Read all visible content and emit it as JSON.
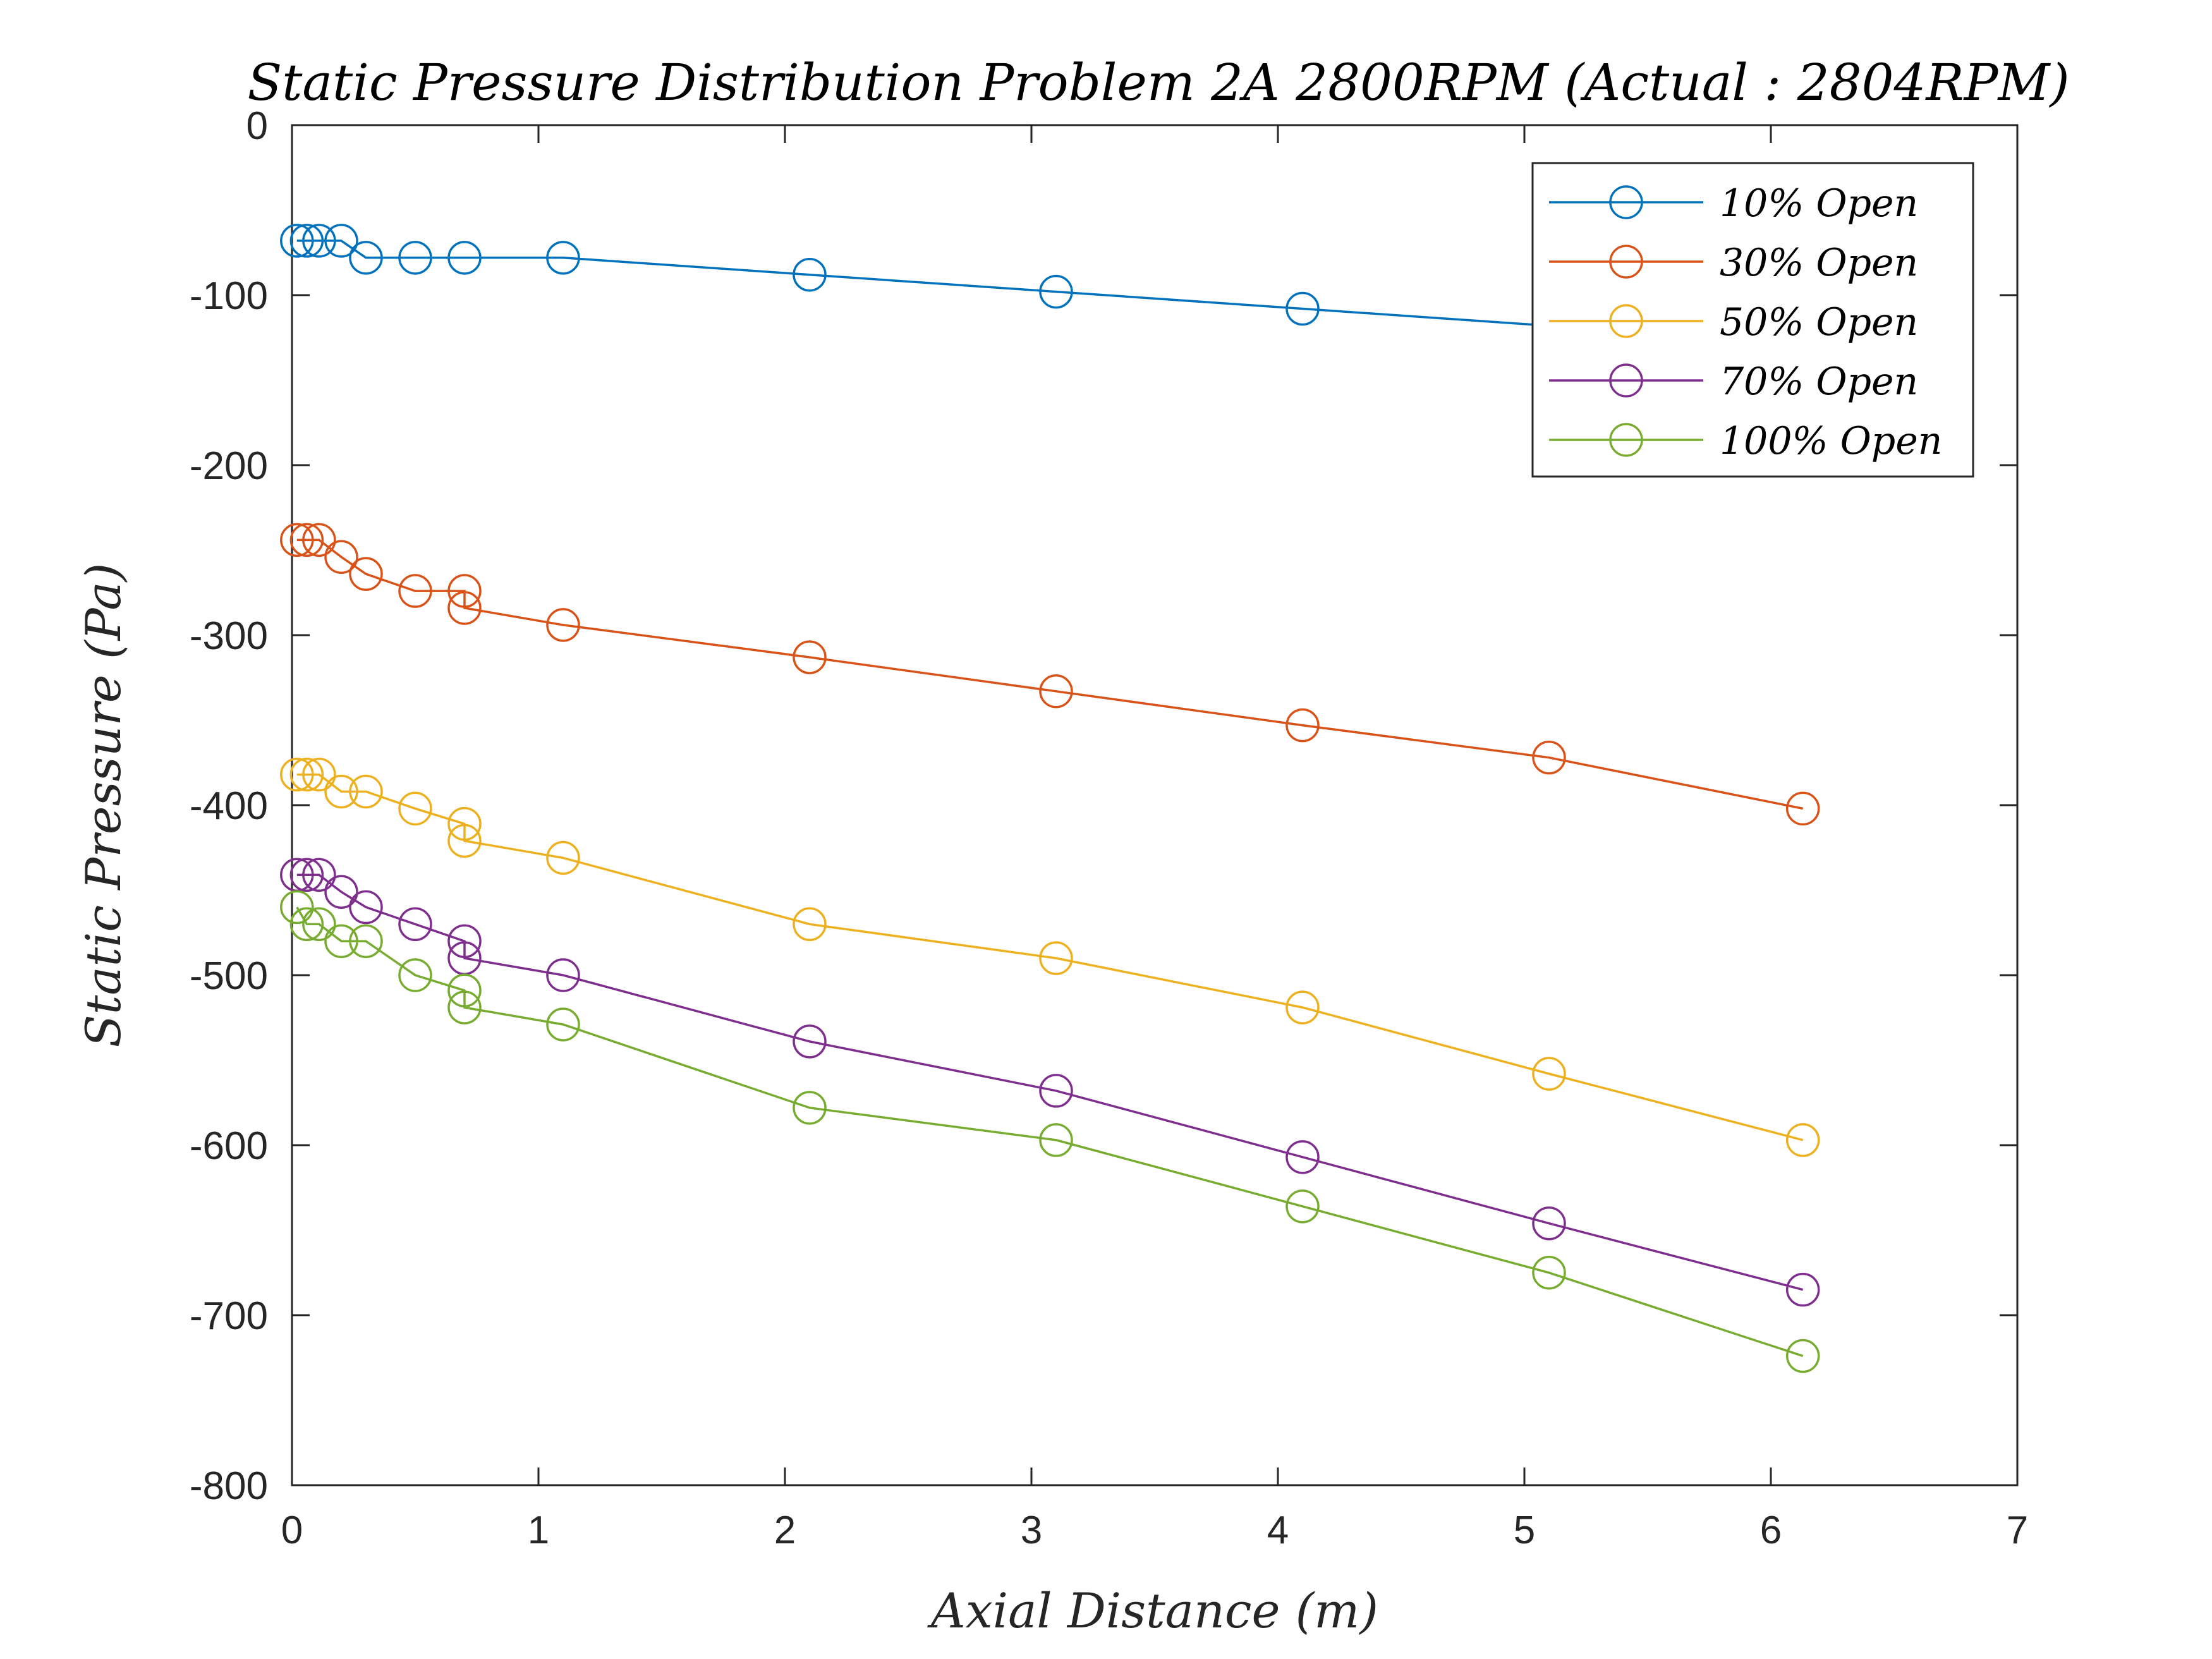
{
  "chart_data": {
    "type": "line",
    "title": "Static Pressure Distribution Problem 2A 2800RPM (Actual : 2804RPM)",
    "xlabel": "Axial Distance (m)",
    "ylabel": "Static Pressure (Pa)",
    "xlim": [
      0,
      7
    ],
    "ylim": [
      -800,
      0
    ],
    "xticks": [
      0,
      1,
      2,
      3,
      4,
      5,
      6,
      7
    ],
    "yticks": [
      0,
      -100,
      -200,
      -300,
      -400,
      -500,
      -600,
      -700,
      -800
    ],
    "grid": false,
    "legend_position": "top-right",
    "marker": "open-circle",
    "series": [
      {
        "name": "10% Open",
        "color": "#0072BD",
        "x": [
          0.02,
          0.06,
          0.11,
          0.2,
          0.3,
          0.5,
          0.7,
          1.1,
          2.1,
          3.1,
          4.1,
          5.1
        ],
        "y": [
          -68,
          -68,
          -68,
          -68,
          -78,
          -78,
          -78,
          -78,
          -88,
          -98,
          -108,
          -118
        ]
      },
      {
        "name": "30% Open",
        "color": "#D95319",
        "x": [
          0.02,
          0.06,
          0.11,
          0.2,
          0.3,
          0.5,
          0.7,
          0.7,
          1.1,
          2.1,
          3.1,
          4.1,
          5.1,
          6.13
        ],
        "y": [
          -244,
          -244,
          -244,
          -254,
          -264,
          -274,
          -274,
          -284,
          -294,
          -313,
          -333,
          -353,
          -372,
          -402
        ]
      },
      {
        "name": "50% Open",
        "color": "#EDB120",
        "x": [
          0.02,
          0.06,
          0.11,
          0.2,
          0.3,
          0.5,
          0.7,
          0.7,
          1.1,
          2.1,
          3.1,
          4.1,
          5.1,
          6.13
        ],
        "y": [
          -382,
          -382,
          -382,
          -392,
          -392,
          -402,
          -411,
          -421,
          -431,
          -470,
          -490,
          -519,
          -558,
          -597
        ]
      },
      {
        "name": "70% Open",
        "color": "#7E2F8E",
        "x": [
          0.02,
          0.06,
          0.11,
          0.2,
          0.3,
          0.5,
          0.7,
          0.7,
          1.1,
          2.1,
          3.1,
          4.1,
          5.1,
          6.13
        ],
        "y": [
          -441,
          -441,
          -441,
          -451,
          -460,
          -470,
          -480,
          -490,
          -500,
          -539,
          -568,
          -607,
          -646,
          -685
        ]
      },
      {
        "name": "100% Open",
        "color": "#77AC30",
        "x": [
          0.02,
          0.06,
          0.11,
          0.2,
          0.3,
          0.5,
          0.7,
          0.7,
          1.1,
          2.1,
          3.1,
          4.1,
          5.1,
          6.13
        ],
        "y": [
          -460,
          -470,
          -470,
          -480,
          -480,
          -500,
          -509,
          -519,
          -529,
          -578,
          -597,
          -636,
          -675,
          -724
        ]
      }
    ]
  }
}
